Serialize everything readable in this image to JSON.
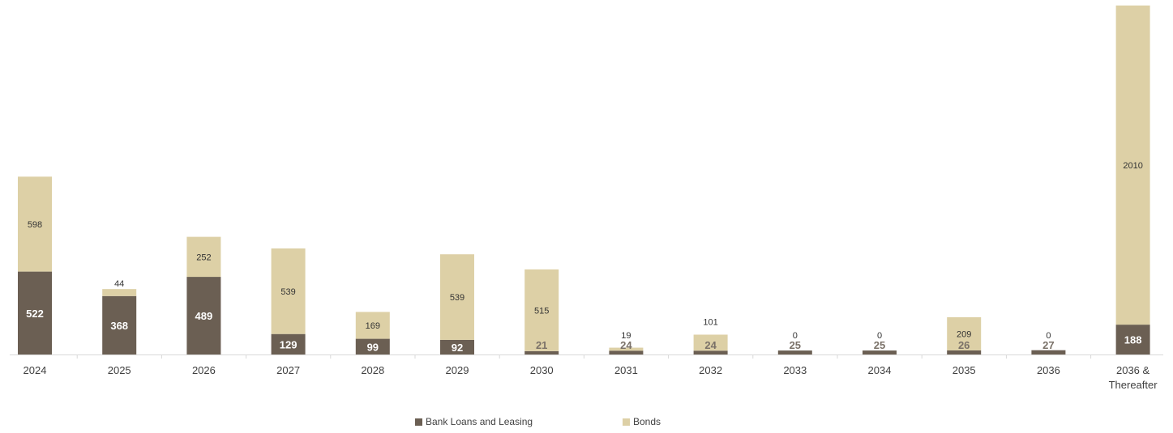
{
  "chart_data": {
    "type": "bar",
    "stacked": true,
    "title": "",
    "xlabel": "",
    "ylabel": "",
    "categories": [
      "2024",
      "2025",
      "2026",
      "2027",
      "2028",
      "2029",
      "2030",
      "2031",
      "2032",
      "2033",
      "2034",
      "2035",
      "2036",
      "2036 & Thereafter"
    ],
    "series": [
      {
        "name": "Bank Loans and Leasing",
        "color": "#6b5f53",
        "values": [
          522,
          368,
          489,
          129,
          99,
          92,
          21,
          24,
          24,
          25,
          25,
          26,
          27,
          188
        ]
      },
      {
        "name": "Bonds",
        "color": "#ddd0a6",
        "values": [
          598,
          44,
          252,
          539,
          169,
          539,
          515,
          19,
          101,
          0,
          0,
          209,
          0,
          2010
        ]
      }
    ],
    "legend_position": "bottom-center",
    "grid": false,
    "ylim": [
      0,
      2200
    ]
  }
}
